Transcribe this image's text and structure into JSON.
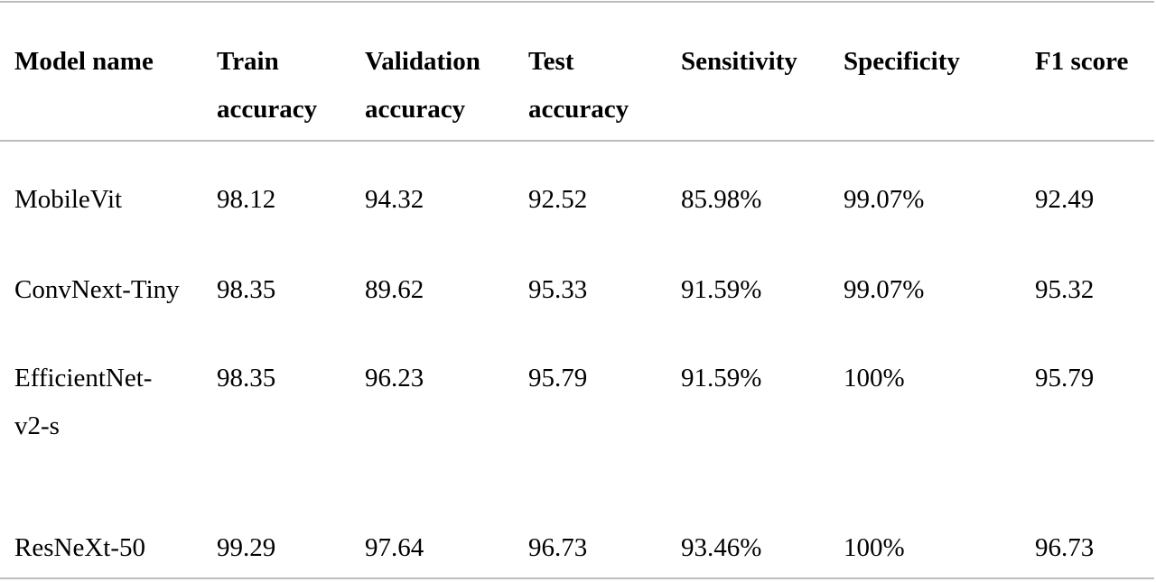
{
  "table": {
    "headers": [
      "Model name",
      "Train\naccuracy",
      "Validation\naccuracy",
      "Test\naccuracy",
      "Sensitivity",
      "Specificity",
      "F1 score"
    ],
    "rows": [
      [
        "MobileVit",
        "98.12",
        "94.32",
        "92.52",
        "85.98%",
        "99.07%",
        "92.49"
      ],
      [
        "ConvNext-Tiny",
        "98.35",
        "89.62",
        "95.33",
        "91.59%",
        "99.07%",
        "95.32"
      ],
      [
        "EfficientNet-\nv2-s",
        "98.35",
        "96.23",
        "95.79",
        "91.59%",
        "100%",
        "95.79"
      ],
      [
        "ResNeXt-50",
        "99.29",
        "97.64",
        "96.73",
        "93.46%",
        "100%",
        "96.73"
      ]
    ]
  }
}
